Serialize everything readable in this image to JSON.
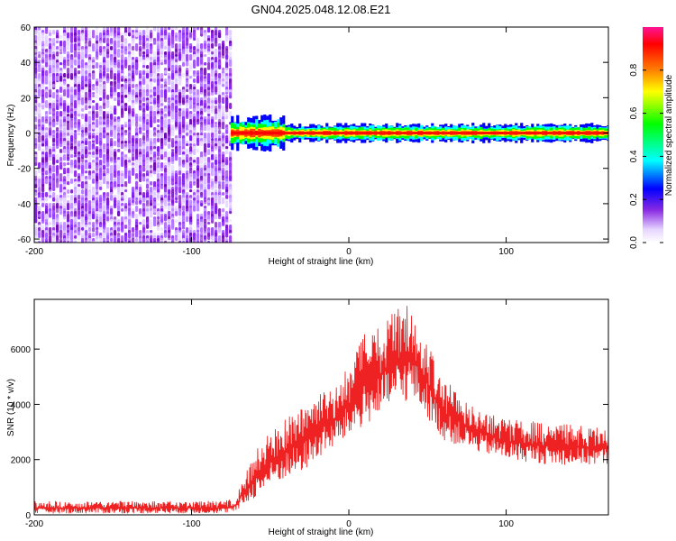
{
  "title": "GN04.2025.048.12.08.E21",
  "chart_data": [
    {
      "type": "heatmap",
      "xlabel": "Height of straight line (km)",
      "ylabel": "Frequency (Hz)",
      "xlim": [
        -200,
        165
      ],
      "ylim": [
        -62,
        60
      ],
      "x_ticks": [
        -200,
        -100,
        0,
        100
      ],
      "y_ticks": [
        60,
        40,
        20,
        0,
        -20,
        -40,
        -60
      ],
      "grid": false,
      "noise_region_x": [
        -200,
        -75
      ],
      "signal_band_hz": [
        -3,
        3
      ],
      "colorbar": {
        "label": "Normalized spectral amplitude",
        "ticks": [
          0.0,
          0.2,
          0.4,
          0.6,
          0.8
        ],
        "range": [
          0,
          1
        ],
        "colors": [
          "#ffffff",
          "#e6d6ff",
          "#8a2be2",
          "#0000ff",
          "#00ffff",
          "#00ff00",
          "#ffff00",
          "#ff8000",
          "#ff0000",
          "#ff1493"
        ]
      }
    },
    {
      "type": "line",
      "xlabel": "Height of straight line (km)",
      "ylabel": "SNR (10 * v/v)",
      "xlim": [
        -200,
        165
      ],
      "ylim": [
        0,
        7800
      ],
      "x_ticks": [
        -200,
        -100,
        0,
        100
      ],
      "y_ticks": [
        0,
        2000,
        4000,
        6000
      ],
      "grid": false,
      "series_color": "#ee2222",
      "envelope": {
        "x": [
          -200,
          -80,
          -72,
          -68,
          -60,
          -50,
          -40,
          -30,
          -20,
          -10,
          0,
          10,
          20,
          30,
          40,
          50,
          60,
          80,
          100,
          130,
          165
        ],
        "upper": [
          500,
          500,
          600,
          1200,
          2300,
          3000,
          3600,
          3900,
          4400,
          4600,
          5400,
          6600,
          6800,
          7500,
          7700,
          6300,
          5000,
          3900,
          3500,
          3300,
          3200
        ],
        "lower": [
          50,
          50,
          100,
          300,
          600,
          1000,
          1300,
          1500,
          2000,
          2400,
          2800,
          3200,
          3600,
          3900,
          4200,
          3500,
          2700,
          2300,
          2000,
          1800,
          1800
        ]
      }
    }
  ]
}
